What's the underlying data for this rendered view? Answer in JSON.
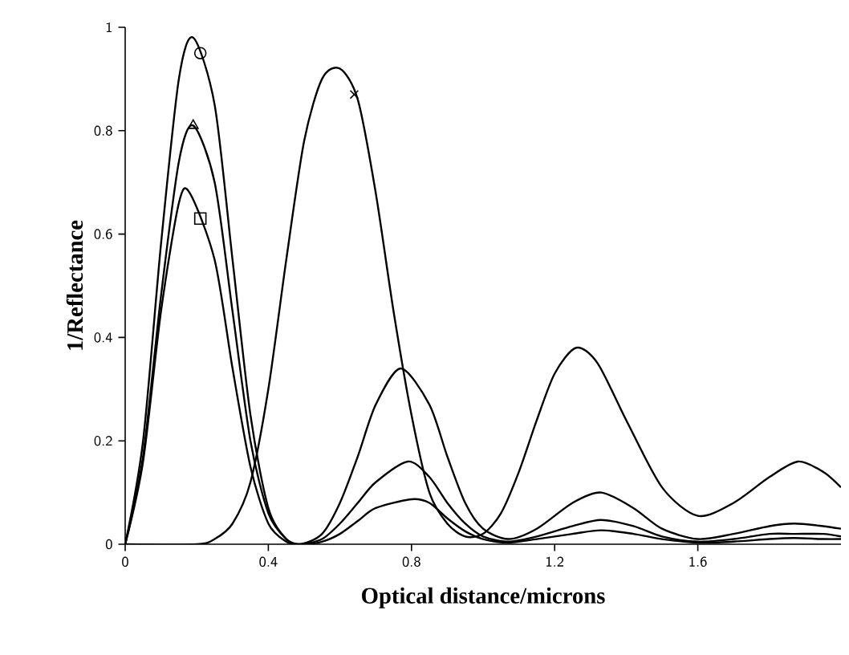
{
  "chart_data": {
    "type": "line",
    "xlabel": "Optical distance/microns",
    "ylabel": "1/Reflectance",
    "xlim": [
      0,
      2
    ],
    "ylim": [
      0,
      1
    ],
    "xticks": [
      0,
      0.4,
      0.8,
      1.2,
      1.6
    ],
    "yticks": [
      0,
      0.2,
      0.4,
      0.6,
      0.8,
      1
    ],
    "marker": "none",
    "line_style": "solid",
    "series": [
      {
        "color": "#000000",
        "x": [
          0,
          0.05,
          0.1,
          0.15,
          0.19,
          0.25,
          0.3,
          0.35,
          0.4,
          0.45,
          0.49,
          0.55,
          0.6,
          0.65,
          0.7,
          0.77,
          0.85,
          0.9,
          0.95,
          1.0,
          1.07,
          1.15,
          1.25,
          1.33,
          1.42,
          1.5,
          1.6,
          1.7,
          1.8,
          1.87,
          1.95,
          2.0
        ],
        "values": [
          0,
          0.2,
          0.58,
          0.9,
          0.98,
          0.85,
          0.55,
          0.25,
          0.07,
          0.01,
          0,
          0.02,
          0.08,
          0.17,
          0.27,
          0.34,
          0.27,
          0.17,
          0.08,
          0.03,
          0.01,
          0.03,
          0.08,
          0.1,
          0.07,
          0.03,
          0.01,
          0.02,
          0.035,
          0.04,
          0.035,
          0.03
        ]
      },
      {
        "color": "#000000",
        "x": [
          0,
          0.05,
          0.1,
          0.15,
          0.19,
          0.25,
          0.3,
          0.35,
          0.4,
          0.45,
          0.49,
          0.55,
          0.6,
          0.65,
          0.7,
          0.79,
          0.85,
          0.9,
          0.95,
          1.0,
          1.07,
          1.15,
          1.25,
          1.33,
          1.42,
          1.5,
          1.6,
          1.7,
          1.8,
          1.87,
          1.95,
          2.0
        ],
        "values": [
          0,
          0.17,
          0.48,
          0.74,
          0.81,
          0.7,
          0.45,
          0.2,
          0.06,
          0.01,
          0,
          0.01,
          0.04,
          0.08,
          0.12,
          0.16,
          0.13,
          0.08,
          0.04,
          0.015,
          0.005,
          0.015,
          0.035,
          0.047,
          0.035,
          0.015,
          0.005,
          0.01,
          0.02,
          0.02,
          0.02,
          0.015
        ]
      },
      {
        "color": "#000000",
        "x": [
          0,
          0.05,
          0.1,
          0.15,
          0.18,
          0.25,
          0.3,
          0.35,
          0.4,
          0.45,
          0.49,
          0.55,
          0.6,
          0.65,
          0.7,
          0.8,
          0.85,
          0.9,
          0.95,
          1.0,
          1.07,
          1.15,
          1.25,
          1.33,
          1.42,
          1.5,
          1.6,
          1.7,
          1.8,
          1.87,
          1.95,
          2.0
        ],
        "values": [
          0,
          0.16,
          0.45,
          0.66,
          0.68,
          0.55,
          0.34,
          0.15,
          0.04,
          0.005,
          0,
          0.005,
          0.02,
          0.045,
          0.07,
          0.087,
          0.08,
          0.05,
          0.025,
          0.01,
          0.003,
          0.01,
          0.02,
          0.027,
          0.02,
          0.01,
          0.003,
          0.005,
          0.01,
          0.012,
          0.01,
          0.01
        ]
      },
      {
        "color": "#000000",
        "x": [
          0,
          0.2,
          0.25,
          0.3,
          0.35,
          0.4,
          0.45,
          0.5,
          0.55,
          0.6,
          0.65,
          0.7,
          0.75,
          0.8,
          0.85,
          0.9,
          0.95,
          1.0,
          1.05,
          1.1,
          1.15,
          1.2,
          1.26,
          1.32,
          1.4,
          1.5,
          1.6,
          1.7,
          1.8,
          1.88,
          1.95,
          2.0
        ],
        "values": [
          0,
          0,
          0.01,
          0.04,
          0.12,
          0.3,
          0.55,
          0.78,
          0.9,
          0.92,
          0.86,
          0.68,
          0.45,
          0.25,
          0.1,
          0.04,
          0.015,
          0.02,
          0.06,
          0.14,
          0.24,
          0.33,
          0.38,
          0.35,
          0.24,
          0.11,
          0.055,
          0.08,
          0.13,
          0.16,
          0.14,
          0.11
        ]
      },
      {
        "type": "scatter",
        "marker": "circle",
        "color": "#000000",
        "x": [
          0.21
        ],
        "values": [
          0.95
        ]
      },
      {
        "type": "scatter",
        "marker": "triangle",
        "color": "#000000",
        "x": [
          0.19
        ],
        "values": [
          0.81
        ]
      },
      {
        "type": "scatter",
        "marker": "square",
        "color": "#000000",
        "x": [
          0.21
        ],
        "values": [
          0.63
        ]
      },
      {
        "type": "scatter",
        "marker": "cross",
        "color": "#000000",
        "x": [
          0.64
        ],
        "values": [
          0.87
        ]
      }
    ]
  }
}
